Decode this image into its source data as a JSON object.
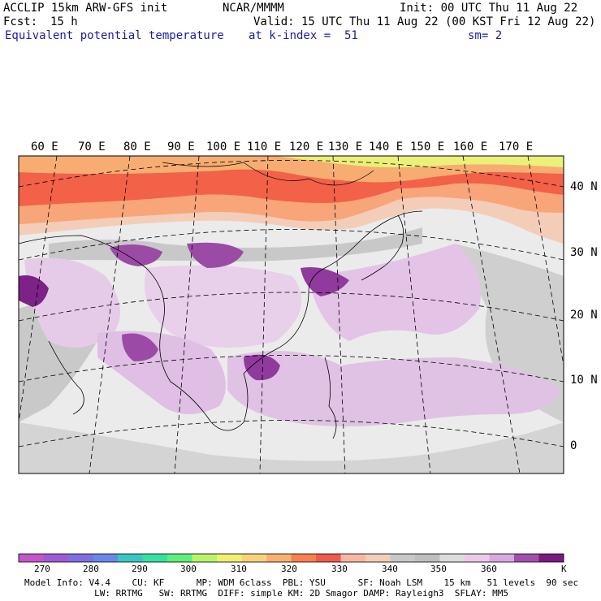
{
  "header": {
    "model": "ACCLIP 15km ARW-GFS init",
    "center": "NCAR/MMMM",
    "init": "Init: 00 UTC Thu 11 Aug 22",
    "fcst_label": "Fcst:",
    "fcst_value": "15 h",
    "valid": "Valid: 15 UTC Thu 11 Aug 22 (00 KST Fri 12 Aug 22)",
    "field": "Equivalent potential temperature",
    "level": "at k-index =  51",
    "smoothing": "sm= 2"
  },
  "map": {
    "lon_labels": [
      "60 E",
      "70 E",
      "80 E",
      "90 E",
      "100 E",
      "110 E",
      "120 E",
      "130 E",
      "140 E",
      "150 E",
      "160 E",
      "170 E"
    ],
    "lat_labels": [
      "40 N",
      "30 N",
      "20 N",
      "10 N",
      "0"
    ]
  },
  "colorbar": {
    "unit": "K",
    "tick_labels": [
      "270",
      "280",
      "290",
      "300",
      "310",
      "320",
      "330",
      "340",
      "350",
      "360"
    ],
    "colors": [
      "#c556c8",
      "#a25ad4",
      "#7e6ee0",
      "#6a86e8",
      "#3ac6c0",
      "#36e0a0",
      "#5cf07a",
      "#b8f46a",
      "#f0f070",
      "#f8d27a",
      "#f8b070",
      "#f88050",
      "#f05a4a",
      "#f8b8a0",
      "#f4cdb8",
      "#c8c8c8",
      "#bebebe",
      "#dcdcdc",
      "#ecc8ec",
      "#d8a8e0",
      "#a050a8",
      "#7a1a80"
    ]
  },
  "footer": {
    "line1": "Model Info: V4.4    CU: KF      MP: WDM 6class  PBL: YSU      SF: Noah LSM    15 km   51 levels  90 sec",
    "line2": "             LW: RRTMG   SW: RRTMG  DIFF: simple KM: 2D Smagor DAMP: Rayleigh3  SFLAY: MM5"
  }
}
